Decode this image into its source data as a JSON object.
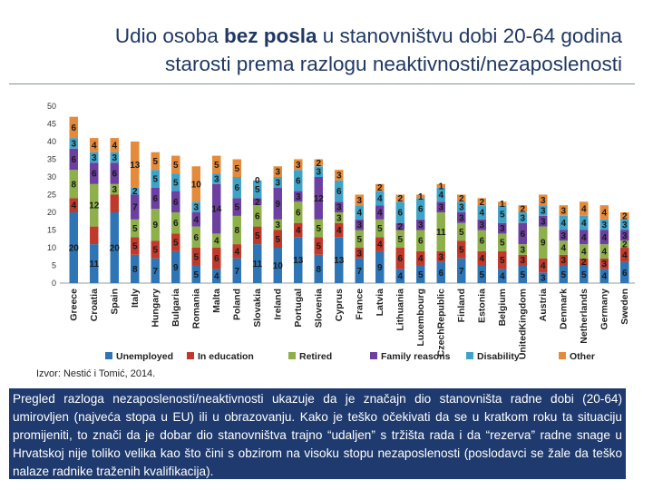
{
  "slide": {
    "title_pre": "Udio osoba ",
    "title_bold": "bez posla",
    "title_post": " u stanovništvu dobi 20-64 godina",
    "title_line2": "starosti prema razlogu neaktivnosti/nezaposlenosti",
    "source": "Izvor: Nestić i Tomić, 2014.",
    "note": "Pregled razloga nezaposlenosti/neaktivnosti ukazuje da je značajn dio stanovništa radne dobi (20-64) umirovljen (najveća stopa u EU) ili u obrazovanju. Kako je teško očekivati da se u kratkom roku ta situaciju promijeniti, to znači da je dobar dio stanovništva trajno “udaljen” s tržišta rada i da “rezerva” radne snage u Hrvatskoj nije toliko velika kao što čini s obzirom na visoku stopu nezaposlenosti (poslodavci se žale da teško nalaze radnike traženih kvalifikacija)."
  },
  "chart_data": {
    "type": "bar",
    "stacked": true,
    "title": "",
    "xlabel": "",
    "ylabel": "",
    "ylim": [
      0,
      50
    ],
    "yticks": [
      0,
      5,
      10,
      15,
      20,
      25,
      30,
      35,
      40,
      45,
      50
    ],
    "grid": false,
    "legend_position": "bottom",
    "categories": [
      "Greece",
      "Croatia",
      "Spain",
      "Italy",
      "Hungary",
      "Bulgaria",
      "Romania",
      "Malta",
      "Poland",
      "Slovakia",
      "Ireland",
      "Portugal",
      "Slovenia",
      "Cyprus",
      "France",
      "Latvia",
      "Lithuania",
      "Luxembourg",
      "CzechRepublic",
      "Finland",
      "Estonia",
      "Belgium",
      "UnitedKingdom",
      "Austria",
      "Denmark",
      "Netherlands",
      "Germany",
      "Sweden"
    ],
    "series": [
      {
        "name": "Unemployed",
        "color": "#2e75b6",
        "values": [
          20,
          11,
          20,
          8,
          7,
          9,
          5,
          4,
          7,
          11,
          10,
          13,
          8,
          13,
          7,
          9,
          4,
          5,
          6,
          7,
          5,
          4,
          5,
          3,
          5,
          5,
          4,
          6
        ],
        "labels": [
          "20",
          "11",
          "20",
          "8",
          "7",
          "9",
          "5",
          "4",
          "7",
          "11",
          "10",
          "13",
          "8",
          "13",
          "7",
          "9",
          "4",
          "5",
          "6",
          "7",
          "5",
          "4",
          "5",
          "3",
          "5",
          "5",
          "4",
          "6"
        ]
      },
      {
        "name": "In education",
        "color": "#c0392b",
        "values": [
          4,
          5,
          5,
          5,
          5,
          5,
          5,
          6,
          4,
          5,
          5,
          4,
          5,
          4,
          3,
          4,
          6,
          4,
          3,
          5,
          4,
          5,
          3,
          4,
          3,
          2,
          3,
          4
        ],
        "labels": [
          "4",
          "",
          "",
          "5",
          "5",
          "5",
          "5",
          "6",
          "4",
          "5",
          "5",
          "4",
          "5",
          "4",
          "3",
          "4",
          "6",
          "4",
          "3",
          "5",
          "4",
          "5",
          "3",
          "4",
          "3",
          "2",
          "3",
          "4"
        ]
      },
      {
        "name": "Retired",
        "color": "#8db04a",
        "values": [
          8,
          12,
          3,
          5,
          9,
          6,
          6,
          4,
          8,
          6,
          3,
          6,
          5,
          3,
          5,
          5,
          5,
          6,
          11,
          5,
          6,
          5,
          3,
          9,
          4,
          4,
          4,
          2
        ],
        "labels": [
          "8",
          "12",
          "3",
          "5",
          "9",
          "6",
          "6",
          "4",
          "8",
          "6",
          "3",
          "6",
          "5",
          "3",
          "5",
          "5",
          "5",
          "6",
          "11",
          "5",
          "6",
          "5",
          "3",
          "9",
          "4",
          "4",
          "4",
          "2"
        ]
      },
      {
        "name": "Family reasons",
        "color": "#6c3fa0",
        "values": [
          6,
          6,
          6,
          7,
          6,
          6,
          4,
          14,
          5,
          2,
          9,
          3,
          12,
          3,
          3,
          4,
          2,
          3,
          3,
          3,
          3,
          3,
          6,
          3,
          3,
          4,
          4,
          3
        ],
        "labels": [
          "6",
          "6",
          "6",
          "7",
          "6",
          "6",
          "4",
          "14",
          "5",
          "2",
          "9",
          "3",
          "12",
          "3",
          "3",
          "4",
          "2",
          "3",
          "3",
          "3",
          "3",
          "3",
          "6",
          "3",
          "3",
          "4",
          "4",
          "3"
        ]
      },
      {
        "name": "Disability",
        "color": "#3fa3c8",
        "values": [
          3,
          3,
          3,
          2,
          5,
          5,
          3,
          3,
          6,
          5,
          3,
          6,
          3,
          6,
          4,
          4,
          6,
          6,
          4,
          3,
          4,
          5,
          3,
          3,
          4,
          4,
          3,
          3
        ],
        "labels": [
          "3",
          "3",
          "3",
          "2",
          "5",
          "5",
          "3",
          "3",
          "6",
          "5",
          "3",
          "6",
          "3",
          "6",
          "4",
          "4",
          "6",
          "6",
          "4",
          "3",
          "4",
          "5",
          "3",
          "3",
          "4",
          "4",
          "3",
          "3"
        ]
      },
      {
        "name": "Other",
        "color": "#e58a3a",
        "values": [
          6,
          4,
          4,
          13,
          5,
          5,
          10,
          5,
          5,
          0,
          3,
          3,
          2,
          3,
          3,
          2,
          2,
          1,
          1,
          2,
          2,
          1,
          2,
          3,
          3,
          4,
          4,
          2
        ],
        "labels": [
          "6",
          "4",
          "4",
          "13",
          "5",
          "5",
          "10",
          "5",
          "5",
          "0",
          "3",
          "3",
          "2",
          "3",
          "3",
          "2",
          "2",
          "1",
          "1",
          "2",
          "2",
          "1",
          "2",
          "3",
          "3",
          "4",
          "4",
          "2"
        ]
      }
    ]
  }
}
